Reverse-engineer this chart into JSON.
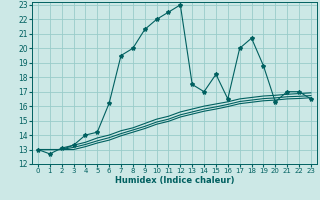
{
  "title": "",
  "xlabel": "Humidex (Indice chaleur)",
  "bg_color": "#cce8e6",
  "grid_color": "#99ccca",
  "line_color": "#006060",
  "xlim": [
    -0.5,
    23.5
  ],
  "ylim": [
    12,
    23.2
  ],
  "xticks": [
    0,
    1,
    2,
    3,
    4,
    5,
    6,
    7,
    8,
    9,
    10,
    11,
    12,
    13,
    14,
    15,
    16,
    17,
    18,
    19,
    20,
    21,
    22,
    23
  ],
  "yticks": [
    12,
    13,
    14,
    15,
    16,
    17,
    18,
    19,
    20,
    21,
    22,
    23
  ],
  "main_line_x": [
    0,
    1,
    2,
    3,
    4,
    5,
    6,
    7,
    8,
    9,
    10,
    11,
    12,
    13,
    14,
    15,
    16,
    17,
    18,
    19,
    20,
    21,
    22,
    23
  ],
  "main_line_y": [
    13,
    12.7,
    13.1,
    13.3,
    14.0,
    14.2,
    16.2,
    19.5,
    20.0,
    21.3,
    22.0,
    22.5,
    23.0,
    17.5,
    17.0,
    18.2,
    16.5,
    20.0,
    20.7,
    18.8,
    16.3,
    17.0,
    17.0,
    16.5
  ],
  "line2_x": [
    0,
    1,
    2,
    3,
    4,
    5,
    6,
    7,
    8,
    9,
    10,
    11,
    12,
    13,
    14,
    15,
    16,
    17,
    18,
    19,
    20,
    21,
    22,
    23
  ],
  "line2_y": [
    13,
    13,
    13,
    13.3,
    13.5,
    13.8,
    14.0,
    14.3,
    14.5,
    14.8,
    15.1,
    15.3,
    15.6,
    15.8,
    16.0,
    16.15,
    16.3,
    16.5,
    16.6,
    16.7,
    16.75,
    16.82,
    16.87,
    16.92
  ],
  "line3_x": [
    0,
    1,
    2,
    3,
    4,
    5,
    6,
    7,
    8,
    9,
    10,
    11,
    12,
    13,
    14,
    15,
    16,
    17,
    18,
    19,
    20,
    21,
    22,
    23
  ],
  "line3_y": [
    13,
    13,
    13,
    13.15,
    13.35,
    13.6,
    13.82,
    14.1,
    14.35,
    14.6,
    14.9,
    15.1,
    15.4,
    15.6,
    15.8,
    15.95,
    16.12,
    16.32,
    16.42,
    16.52,
    16.57,
    16.65,
    16.68,
    16.73
  ],
  "line4_x": [
    0,
    1,
    2,
    3,
    4,
    5,
    6,
    7,
    8,
    9,
    10,
    11,
    12,
    13,
    14,
    15,
    16,
    17,
    18,
    19,
    20,
    21,
    22,
    23
  ],
  "line4_y": [
    13,
    13,
    13,
    13.0,
    13.2,
    13.45,
    13.65,
    13.95,
    14.2,
    14.45,
    14.75,
    14.95,
    15.25,
    15.45,
    15.65,
    15.8,
    15.97,
    16.17,
    16.27,
    16.37,
    16.42,
    16.5,
    16.53,
    16.58
  ]
}
